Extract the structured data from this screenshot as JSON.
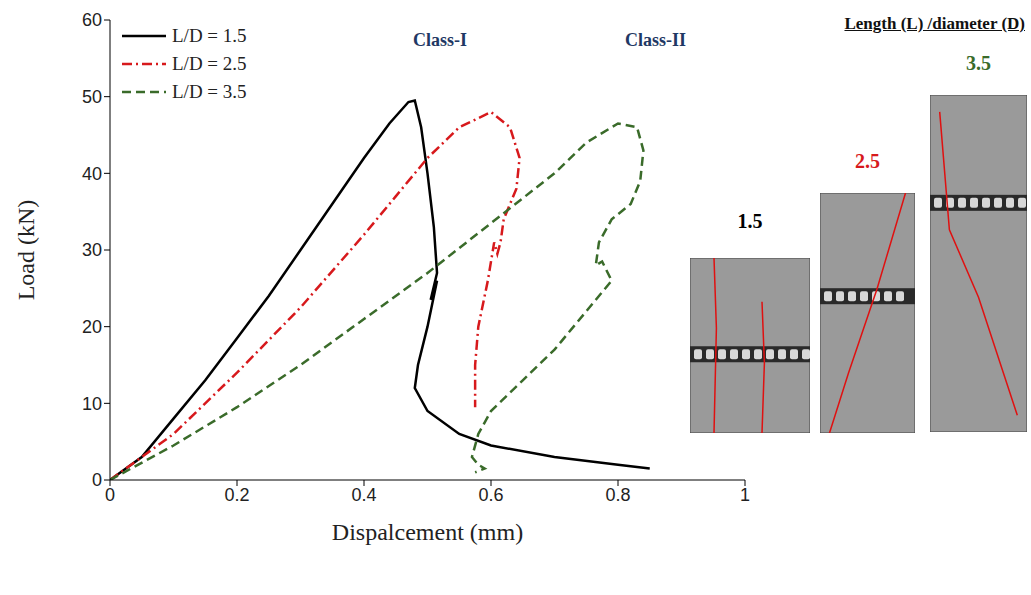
{
  "chart_data": {
    "type": "line",
    "x_label": "Dispalcement (mm)",
    "y_label": "Load (kN)",
    "xlim": [
      0,
      1
    ],
    "xticks": [
      0,
      0.2,
      0.4,
      0.6,
      0.8,
      1
    ],
    "ylim": [
      0,
      60
    ],
    "yticks": [
      0,
      10,
      20,
      30,
      40,
      50,
      60
    ],
    "grid": false,
    "legend": "upper left",
    "annotations": [
      "Class-I",
      "Class-II"
    ],
    "inset": {
      "title": "Length (L) /diameter (D)",
      "labels": [
        "1.5",
        "2.5",
        "3.5"
      ]
    },
    "series": [
      {
        "name": "L/D = 1.5",
        "color": "#000000",
        "line_style": "solid",
        "x": [
          0,
          0.05,
          0.1,
          0.15,
          0.2,
          0.25,
          0.3,
          0.35,
          0.4,
          0.44,
          0.47,
          0.48,
          0.49,
          0.5,
          0.51,
          0.515,
          0.505,
          0.515,
          0.5,
          0.485,
          0.48,
          0.5,
          0.55,
          0.6,
          0.7,
          0.8,
          0.85
        ],
        "values": [
          0,
          3,
          8,
          13,
          18.5,
          24,
          30,
          36,
          42,
          46.5,
          49.3,
          49.5,
          46,
          40,
          33,
          27,
          23.5,
          26,
          20,
          15,
          12,
          9,
          6,
          4.5,
          3,
          2,
          1.5
        ]
      },
      {
        "name": "L/D = 2.5",
        "color": "#d7191c",
        "line_style": "dashdot",
        "x": [
          0,
          0.1,
          0.2,
          0.3,
          0.4,
          0.45,
          0.5,
          0.55,
          0.6,
          0.63,
          0.645,
          0.64,
          0.62,
          0.615,
          0.61,
          0.605,
          0.595,
          0.58,
          0.575,
          0.575
        ],
        "values": [
          0,
          6,
          14,
          22.5,
          32,
          37,
          42,
          46,
          48,
          46,
          42,
          38,
          34,
          31,
          29.5,
          31,
          26,
          20,
          15,
          9.5
        ]
      },
      {
        "name": "L/D = 3.5",
        "color": "#3a6b2a",
        "line_style": "dashed",
        "x": [
          0,
          0.1,
          0.2,
          0.3,
          0.4,
          0.5,
          0.6,
          0.7,
          0.75,
          0.8,
          0.83,
          0.84,
          0.835,
          0.82,
          0.79,
          0.77,
          0.765,
          0.775,
          0.79,
          0.75,
          0.7,
          0.65,
          0.6,
          0.58,
          0.57,
          0.58,
          0.59,
          0.575
        ],
        "values": [
          0,
          4.5,
          9.5,
          15,
          21,
          27,
          33.5,
          40,
          44,
          46.5,
          46,
          43,
          39,
          36,
          34,
          31,
          28,
          28.5,
          26,
          22,
          17,
          13,
          9,
          6,
          3,
          2,
          1.5,
          1
        ]
      }
    ]
  }
}
